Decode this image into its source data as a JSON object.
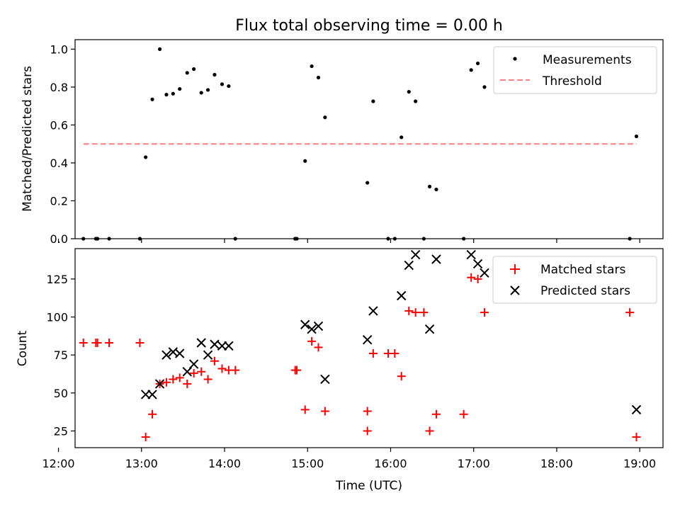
{
  "chart_data": [
    {
      "type": "scatter",
      "title": "Flux total observing time = 0.00 h",
      "ylabel": "Matched/Predicted stars",
      "xlim": [
        12.2,
        19.28
      ],
      "ylim": [
        0,
        1.05
      ],
      "yticks": [
        "0.0",
        "0.2",
        "0.4",
        "0.6",
        "0.8",
        "1.0"
      ],
      "legend": {
        "position": "top-right",
        "entries": [
          "Measurements",
          "Threshold"
        ]
      },
      "colors": {
        "measurements": "#000000",
        "threshold": "#ff8080"
      },
      "series": [
        {
          "name": "Measurements",
          "x": [
            12.3,
            12.45,
            12.47,
            12.61,
            12.98,
            13.05,
            13.13,
            13.22,
            13.3,
            13.38,
            13.46,
            13.55,
            13.63,
            13.72,
            13.8,
            13.88,
            13.97,
            14.05,
            14.13,
            14.85,
            14.87,
            14.97,
            15.05,
            15.13,
            15.21,
            15.72,
            15.79,
            15.97,
            16.05,
            16.13,
            16.22,
            16.3,
            16.4,
            16.47,
            16.55,
            16.88,
            16.97,
            17.05,
            17.13,
            18.88,
            18.96
          ],
          "y": [
            0,
            0,
            0,
            0,
            0,
            0.43,
            0.735,
            1.0,
            0.76,
            0.765,
            0.79,
            0.875,
            0.895,
            0.77,
            0.785,
            0.865,
            0.815,
            0.805,
            0,
            0,
            0,
            0.41,
            0.91,
            0.85,
            0.64,
            0.295,
            0.725,
            0,
            0,
            0.535,
            0.775,
            0.725,
            0,
            0.275,
            0.26,
            0,
            0.89,
            0.925,
            0.8,
            0,
            0.54
          ]
        },
        {
          "name": "Threshold",
          "x": [
            12.3,
            18.96
          ],
          "y": [
            0.5,
            0.5
          ]
        }
      ]
    },
    {
      "type": "scatter",
      "xlabel": "Time (UTC)",
      "ylabel": "Count",
      "xlim": [
        12.2,
        19.28
      ],
      "ylim": [
        14,
        145
      ],
      "xticks": [
        "12:00",
        "13:00",
        "14:00",
        "15:00",
        "16:00",
        "17:00",
        "18:00",
        "19:00"
      ],
      "yticks": [
        "25",
        "50",
        "75",
        "100",
        "125"
      ],
      "legend": {
        "position": "top-right",
        "entries": [
          "Matched stars",
          "Predicted stars"
        ]
      },
      "colors": {
        "matched": "#ff0000",
        "predicted": "#000000"
      },
      "series": [
        {
          "name": "Matched stars",
          "x": [
            12.3,
            12.45,
            12.47,
            12.61,
            12.98,
            13.05,
            13.13,
            13.22,
            13.3,
            13.38,
            13.46,
            13.55,
            13.63,
            13.72,
            13.8,
            13.88,
            13.97,
            14.05,
            14.13,
            14.85,
            14.87,
            14.97,
            15.05,
            15.13,
            15.21,
            15.72,
            15.72,
            15.79,
            15.97,
            16.05,
            16.13,
            16.22,
            16.3,
            16.4,
            16.47,
            16.55,
            16.88,
            16.97,
            17.05,
            17.13,
            18.88,
            18.96
          ],
          "y": [
            83,
            83,
            83,
            83,
            83,
            21,
            36,
            56,
            57,
            59,
            60,
            56,
            63,
            64,
            59,
            71,
            66,
            65,
            65,
            65,
            65,
            39,
            84,
            80,
            38,
            38,
            25,
            76,
            76,
            76,
            61,
            104,
            103,
            103,
            25,
            36,
            36,
            126,
            125,
            103,
            103,
            21
          ]
        },
        {
          "name": "Predicted stars",
          "x": [
            13.05,
            13.13,
            13.22,
            13.3,
            13.38,
            13.46,
            13.55,
            13.63,
            13.72,
            13.8,
            13.88,
            13.97,
            14.05,
            14.97,
            15.05,
            15.13,
            15.21,
            15.72,
            15.79,
            16.13,
            16.22,
            16.3,
            16.47,
            16.55,
            16.97,
            17.05,
            17.13,
            18.96
          ],
          "y": [
            49,
            49,
            56,
            75,
            77,
            76,
            64,
            69,
            83,
            75,
            82,
            81,
            81,
            95,
            92,
            94,
            59,
            85,
            104,
            114,
            134,
            141,
            92,
            138,
            141,
            135,
            129,
            39
          ]
        }
      ]
    }
  ]
}
